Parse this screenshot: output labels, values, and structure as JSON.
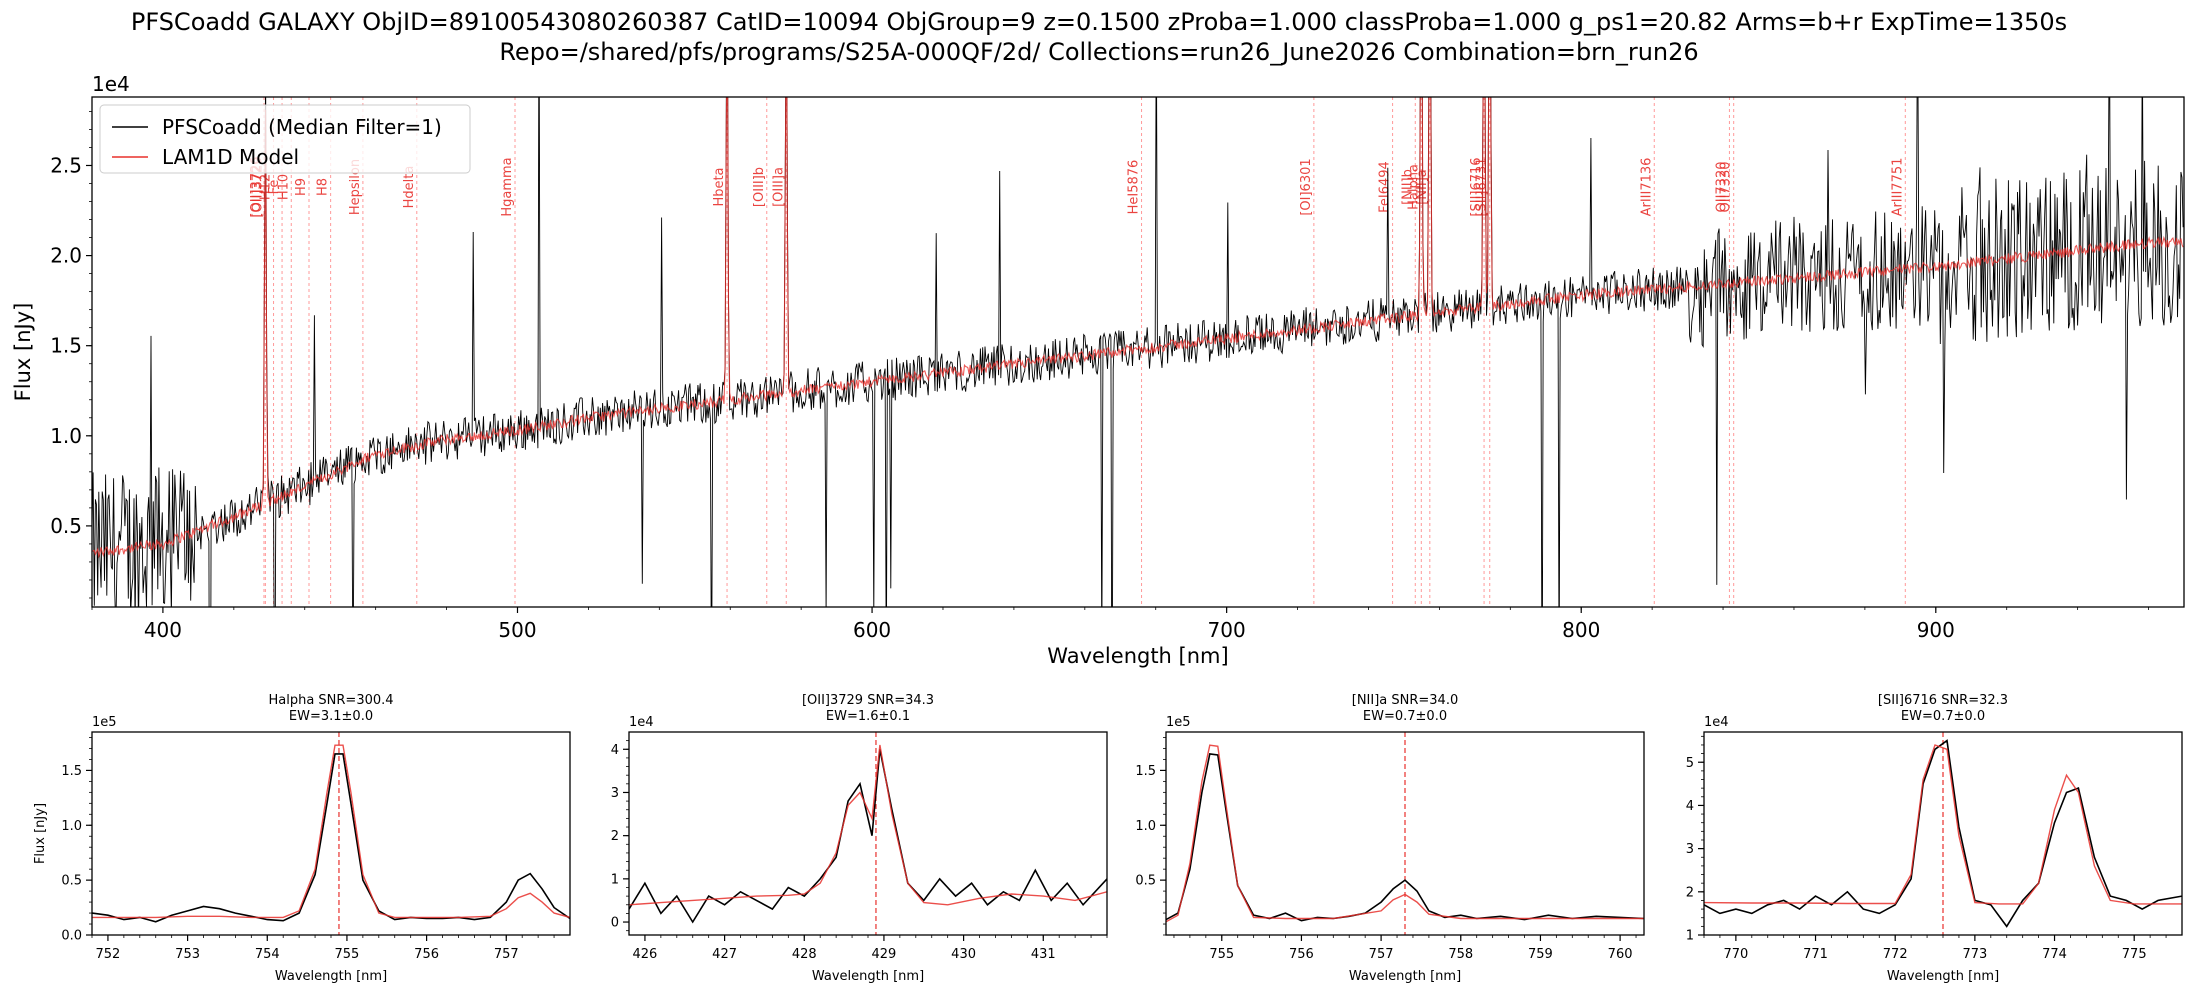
{
  "figure": {
    "title_line1": "PFSCoadd GALAXY  ObjID=89100543080260387  CatID=10094  ObjGroup=9  z=0.1500  zProba=1.000  classProba=1.000  g_ps1=20.82  Arms=b+r  ExpTime=1350s",
    "title_line2": "Repo=/shared/pfs/programs/S25A-000QF/2d/  Collections=run26_June2026  Combination=brn_run26"
  },
  "colors": {
    "data": "#000000",
    "model": "#e8302c",
    "line_marker": "#ff7777"
  },
  "chart_data": [
    {
      "type": "line",
      "panel": "main",
      "xlabel": "Wavelength [nm]",
      "ylabel": "Flux [nJy]",
      "offset_text": "1e4",
      "xlim": [
        380,
        970
      ],
      "ylim": [
        0.05,
        2.88
      ],
      "xticks": [
        400,
        500,
        600,
        700,
        800,
        900
      ],
      "yticks": [
        0.5,
        1.0,
        1.5,
        2.0,
        2.5
      ],
      "xtick_labels": [
        "400",
        "500",
        "600",
        "700",
        "800",
        "900"
      ],
      "ytick_labels": [
        "0.5",
        "1.0",
        "1.5",
        "2.0",
        "2.5"
      ],
      "legend": {
        "position": "top-left",
        "entries": [
          "PFSCoadd (Median Filter=1)",
          "LAM1D Model"
        ]
      },
      "continuum_model": {
        "x": [
          380,
          400,
          420,
          440,
          460,
          480,
          500,
          520,
          560,
          600,
          650,
          700,
          750,
          800,
          850,
          900,
          960
        ],
        "y": [
          0.35,
          0.4,
          0.55,
          0.72,
          0.9,
          0.98,
          1.03,
          1.1,
          1.2,
          1.3,
          1.42,
          1.54,
          1.66,
          1.78,
          1.86,
          1.94,
          2.07
        ]
      },
      "lines": [
        {
          "label": "[OII]3726",
          "x": 428.5
        },
        {
          "label": "[OII]3729",
          "x": 428.9
        },
        {
          "label": "H12",
          "x": 431.2
        },
        {
          "label": "Fe",
          "x": 433.6
        },
        {
          "label": "H10",
          "x": 436.2
        },
        {
          "label": "H9",
          "x": 441.2
        },
        {
          "label": "H8",
          "x": 447.3
        },
        {
          "label": "Hepsilon",
          "x": 456.4
        },
        {
          "label": "Hdelta",
          "x": 471.6
        },
        {
          "label": "Hgamma",
          "x": 499.3
        },
        {
          "label": "Hbeta",
          "x": 559.1
        },
        {
          "label": "[OIII]b",
          "x": 570.3
        },
        {
          "label": "[OIII]a",
          "x": 575.8
        },
        {
          "label": "HeI5876",
          "x": 676.0
        },
        {
          "label": "[OI]6301",
          "x": 724.6
        },
        {
          "label": "FeI6494",
          "x": 746.8
        },
        {
          "label": "[NII]b",
          "x": 753.2
        },
        {
          "label": "Halpha",
          "x": 754.9
        },
        {
          "label": "[NII]a",
          "x": 757.3
        },
        {
          "label": "[SII]6716",
          "x": 772.6
        },
        {
          "label": "[SII]6731",
          "x": 774.2
        },
        {
          "label": "ArIII7136",
          "x": 820.6
        },
        {
          "label": "OII7320",
          "x": 841.8
        },
        {
          "label": "OII7330",
          "x": 843.0
        },
        {
          "label": "ArIII7751",
          "x": 891.4
        }
      ]
    },
    {
      "type": "line",
      "panel": "zoom-halpha",
      "title": "Halpha  SNR=300.4",
      "subtitle": "EW=3.1±0.0",
      "xlabel": "Wavelength [nm]",
      "ylabel": "Flux [nJy]",
      "offset_text": "1e5",
      "xlim": [
        751.8,
        757.8
      ],
      "ylim": [
        0,
        1.85
      ],
      "xticks": [
        752,
        753,
        754,
        755,
        756,
        757
      ],
      "yticks": [
        0.0,
        0.5,
        1.0,
        1.5
      ],
      "xtick_labels": [
        "752",
        "753",
        "754",
        "755",
        "756",
        "757"
      ],
      "ytick_labels": [
        "0.0",
        "0.5",
        "1.0",
        "1.5"
      ],
      "marker_x": 754.9,
      "series": [
        {
          "name": "PFSCoadd (Median Filter=1)",
          "x": [
            751.8,
            752.0,
            752.2,
            752.4,
            752.6,
            752.8,
            753.0,
            753.2,
            753.4,
            753.6,
            753.8,
            754.0,
            754.2,
            754.4,
            754.6,
            754.75,
            754.85,
            754.95,
            755.05,
            755.2,
            755.4,
            755.6,
            755.8,
            756.0,
            756.2,
            756.4,
            756.6,
            756.8,
            757.0,
            757.15,
            757.3,
            757.45,
            757.6,
            757.8
          ],
          "y": [
            0.2,
            0.18,
            0.14,
            0.16,
            0.12,
            0.18,
            0.22,
            0.26,
            0.24,
            0.2,
            0.17,
            0.14,
            0.13,
            0.2,
            0.55,
            1.2,
            1.65,
            1.65,
            1.2,
            0.5,
            0.22,
            0.14,
            0.16,
            0.15,
            0.15,
            0.16,
            0.14,
            0.16,
            0.3,
            0.5,
            0.56,
            0.42,
            0.25,
            0.15
          ]
        },
        {
          "name": "LAM1D Model",
          "x": [
            751.8,
            752.2,
            752.6,
            753.0,
            753.4,
            753.8,
            754.2,
            754.4,
            754.6,
            754.75,
            754.85,
            754.95,
            755.05,
            755.2,
            755.4,
            755.6,
            756.0,
            756.4,
            756.8,
            757.0,
            757.15,
            757.3,
            757.45,
            757.6,
            757.8
          ],
          "y": [
            0.16,
            0.16,
            0.16,
            0.17,
            0.17,
            0.16,
            0.16,
            0.22,
            0.6,
            1.3,
            1.73,
            1.73,
            1.3,
            0.55,
            0.2,
            0.16,
            0.16,
            0.16,
            0.17,
            0.24,
            0.34,
            0.38,
            0.3,
            0.2,
            0.16
          ]
        }
      ]
    },
    {
      "type": "line",
      "panel": "zoom-oii",
      "title": "[OII]3729  SNR=34.3",
      "subtitle": "EW=1.6±0.1",
      "xlabel": "Wavelength [nm]",
      "ylabel": "",
      "offset_text": "1e4",
      "xlim": [
        425.8,
        431.8
      ],
      "ylim": [
        -0.3,
        4.4
      ],
      "xticks": [
        426,
        427,
        428,
        429,
        430,
        431
      ],
      "yticks": [
        0,
        1,
        2,
        3,
        4
      ],
      "xtick_labels": [
        "426",
        "427",
        "428",
        "429",
        "430",
        "431"
      ],
      "ytick_labels": [
        "0",
        "1",
        "2",
        "3",
        "4"
      ],
      "marker_x": 428.9,
      "series": [
        {
          "name": "PFSCoadd (Median Filter=1)",
          "x": [
            425.8,
            426.0,
            426.2,
            426.4,
            426.6,
            426.8,
            427.0,
            427.2,
            427.4,
            427.6,
            427.8,
            428.0,
            428.2,
            428.4,
            428.55,
            428.7,
            428.85,
            428.95,
            429.1,
            429.3,
            429.5,
            429.7,
            429.9,
            430.1,
            430.3,
            430.5,
            430.7,
            430.9,
            431.1,
            431.3,
            431.5,
            431.8
          ],
          "y": [
            0.3,
            0.9,
            0.2,
            0.6,
            0.0,
            0.6,
            0.4,
            0.7,
            0.5,
            0.3,
            0.8,
            0.6,
            1.0,
            1.5,
            2.8,
            3.2,
            2.0,
            4.0,
            2.6,
            0.9,
            0.5,
            1.0,
            0.6,
            0.9,
            0.4,
            0.7,
            0.5,
            1.2,
            0.5,
            0.9,
            0.4,
            1.0
          ]
        },
        {
          "name": "LAM1D Model",
          "x": [
            425.8,
            426.2,
            426.6,
            427.0,
            427.4,
            427.8,
            428.0,
            428.2,
            428.4,
            428.55,
            428.7,
            428.85,
            428.95,
            429.1,
            429.3,
            429.5,
            429.8,
            430.2,
            430.6,
            431.0,
            431.4,
            431.8
          ],
          "y": [
            0.4,
            0.45,
            0.5,
            0.55,
            0.6,
            0.62,
            0.65,
            0.9,
            1.6,
            2.7,
            3.0,
            2.4,
            4.1,
            2.5,
            0.9,
            0.45,
            0.4,
            0.55,
            0.65,
            0.6,
            0.5,
            0.7
          ]
        }
      ]
    },
    {
      "type": "line",
      "panel": "zoom-nii",
      "title": "[NII]a  SNR=34.0",
      "subtitle": "EW=0.7±0.0",
      "xlabel": "Wavelength [nm]",
      "ylabel": "",
      "offset_text": "1e5",
      "xlim": [
        754.3,
        760.3
      ],
      "ylim": [
        0,
        1.85
      ],
      "xticks": [
        755,
        756,
        757,
        758,
        759,
        760
      ],
      "yticks": [
        0.5,
        1.0,
        1.5
      ],
      "xtick_labels": [
        "755",
        "756",
        "757",
        "758",
        "759",
        "760"
      ],
      "ytick_labels": [
        "0.5",
        "1.0",
        "1.5"
      ],
      "marker_x": 757.3,
      "series": [
        {
          "name": "PFSCoadd (Median Filter=1)",
          "x": [
            754.3,
            754.45,
            754.6,
            754.75,
            754.85,
            754.95,
            755.05,
            755.2,
            755.4,
            755.6,
            755.8,
            756.0,
            756.2,
            756.4,
            756.6,
            756.8,
            757.0,
            757.15,
            757.3,
            757.45,
            757.6,
            757.8,
            758.0,
            758.2,
            758.5,
            758.8,
            759.1,
            759.4,
            759.7,
            760.0,
            760.3
          ],
          "y": [
            0.14,
            0.2,
            0.6,
            1.3,
            1.65,
            1.64,
            1.15,
            0.45,
            0.18,
            0.15,
            0.2,
            0.13,
            0.16,
            0.15,
            0.17,
            0.2,
            0.3,
            0.42,
            0.5,
            0.4,
            0.22,
            0.16,
            0.18,
            0.15,
            0.17,
            0.14,
            0.18,
            0.15,
            0.17,
            0.16,
            0.15
          ]
        },
        {
          "name": "LAM1D Model",
          "x": [
            754.3,
            754.45,
            754.6,
            754.75,
            754.85,
            754.95,
            755.05,
            755.2,
            755.4,
            755.8,
            756.4,
            757.0,
            757.15,
            757.3,
            757.45,
            757.6,
            758.0,
            758.6,
            759.4,
            760.3
          ],
          "y": [
            0.12,
            0.18,
            0.65,
            1.4,
            1.73,
            1.72,
            1.2,
            0.45,
            0.16,
            0.15,
            0.15,
            0.22,
            0.32,
            0.37,
            0.3,
            0.19,
            0.15,
            0.15,
            0.15,
            0.15
          ]
        }
      ]
    },
    {
      "type": "line",
      "panel": "zoom-sii",
      "title": "[SII]6716  SNR=32.3",
      "subtitle": "EW=0.7±0.0",
      "xlabel": "Wavelength [nm]",
      "ylabel": "",
      "offset_text": "1e4",
      "xlim": [
        769.6,
        775.6
      ],
      "ylim": [
        1,
        5.7
      ],
      "xticks": [
        770,
        771,
        772,
        773,
        774,
        775
      ],
      "yticks": [
        1,
        2,
        3,
        4,
        5
      ],
      "xtick_labels": [
        "770",
        "771",
        "772",
        "773",
        "774",
        "775"
      ],
      "ytick_labels": [
        "1",
        "2",
        "3",
        "4",
        "5"
      ],
      "marker_x": 772.6,
      "series": [
        {
          "name": "PFSCoadd (Median Filter=1)",
          "x": [
            769.6,
            769.8,
            770.0,
            770.2,
            770.4,
            770.6,
            770.8,
            771.0,
            771.2,
            771.4,
            771.6,
            771.8,
            772.0,
            772.2,
            772.35,
            772.5,
            772.65,
            772.8,
            773.0,
            773.2,
            773.4,
            773.6,
            773.8,
            774.0,
            774.15,
            774.3,
            774.5,
            774.7,
            774.9,
            775.1,
            775.3,
            775.6
          ],
          "y": [
            1.7,
            1.5,
            1.6,
            1.5,
            1.7,
            1.8,
            1.6,
            1.9,
            1.7,
            2.0,
            1.6,
            1.5,
            1.7,
            2.3,
            4.5,
            5.3,
            5.5,
            3.5,
            1.8,
            1.7,
            1.2,
            1.8,
            2.2,
            3.6,
            4.3,
            4.4,
            2.8,
            1.9,
            1.8,
            1.6,
            1.8,
            1.9
          ]
        },
        {
          "name": "LAM1D Model",
          "x": [
            769.6,
            770.2,
            770.8,
            771.4,
            772.0,
            772.2,
            772.35,
            772.5,
            772.65,
            772.8,
            773.0,
            773.3,
            773.6,
            773.8,
            774.0,
            774.15,
            774.3,
            774.5,
            774.7,
            775.0,
            775.6
          ],
          "y": [
            1.75,
            1.74,
            1.74,
            1.73,
            1.73,
            2.4,
            4.6,
            5.4,
            5.3,
            3.3,
            1.75,
            1.72,
            1.72,
            2.2,
            3.9,
            4.7,
            4.3,
            2.6,
            1.8,
            1.72,
            1.72
          ]
        }
      ]
    }
  ]
}
